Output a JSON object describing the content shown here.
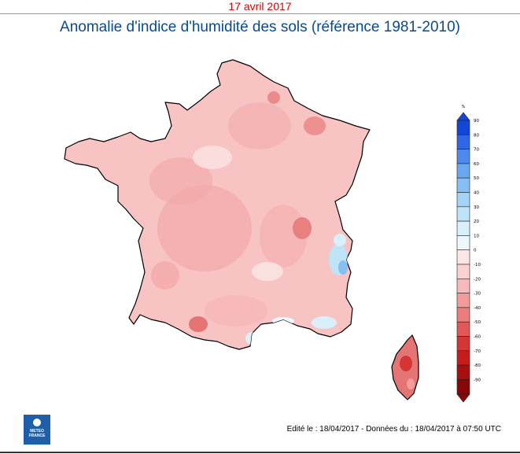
{
  "header": {
    "date": "17 avril 2017",
    "title": "Anomalie d'indice d'humidité des sols (référence 1981-2010)"
  },
  "colorbar": {
    "unit": "%",
    "labels": [
      "90",
      "80",
      "70",
      "60",
      "50",
      "40",
      "30",
      "20",
      "10",
      "0",
      "-10",
      "-20",
      "-30",
      "-40",
      "-50",
      "-60",
      "-70",
      "-80",
      "-90"
    ],
    "colors": [
      "#1346d8",
      "#2f67e6",
      "#4e89ee",
      "#6aa6f1",
      "#86bff3",
      "#a3d3f5",
      "#bfe3f7",
      "#d9eff9",
      "#eef8fc",
      "#fde6e6",
      "#fbd1d1",
      "#f8b9b9",
      "#f29c9c",
      "#eb7d7d",
      "#e25757",
      "#d63535",
      "#c71c1c",
      "#a80f0f",
      "#8a0505"
    ]
  },
  "footer": {
    "edit_info": "Edité le : 18/04/2017 - Données du : 18/04/2017 à 07:50 UTC",
    "logo_text": [
      "METEO",
      "FRANCE"
    ]
  }
}
